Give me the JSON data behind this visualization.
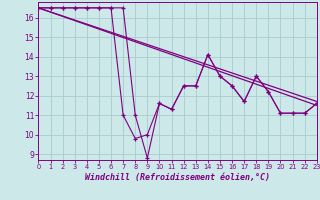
{
  "xlabel": "Windchill (Refroidissement éolien,°C)",
  "background_color": "#cce8e8",
  "line_color": "#800080",
  "grid_color": "#aacccc",
  "x_data": [
    0,
    1,
    2,
    3,
    4,
    5,
    6,
    7,
    8,
    9,
    10,
    11,
    12,
    13,
    14,
    15,
    16,
    17,
    18,
    19,
    20,
    21,
    22,
    23
  ],
  "y_line1": [
    16.5,
    16.5,
    16.5,
    16.5,
    16.5,
    16.5,
    16.5,
    16.5,
    11.0,
    8.8,
    11.6,
    11.3,
    12.5,
    12.5,
    14.1,
    13.0,
    12.5,
    11.7,
    13.0,
    12.2,
    11.1,
    11.1,
    11.1,
    11.6
  ],
  "y_line2": [
    16.5,
    16.5,
    16.5,
    16.5,
    16.5,
    16.5,
    16.5,
    11.0,
    9.8,
    10.0,
    11.6,
    11.3,
    12.5,
    12.5,
    14.1,
    13.0,
    12.5,
    11.7,
    13.0,
    12.2,
    11.1,
    11.1,
    11.1,
    11.6
  ],
  "trend1_x": [
    0,
    23
  ],
  "trend1_y": [
    16.5,
    11.5
  ],
  "trend2_x": [
    0,
    23
  ],
  "trend2_y": [
    16.5,
    11.7
  ],
  "xlim": [
    0,
    23
  ],
  "ylim": [
    8.7,
    16.8
  ],
  "yticks": [
    9,
    10,
    11,
    12,
    13,
    14,
    15,
    16
  ],
  "xticks": [
    0,
    1,
    2,
    3,
    4,
    5,
    6,
    7,
    8,
    9,
    10,
    11,
    12,
    13,
    14,
    15,
    16,
    17,
    18,
    19,
    20,
    21,
    22,
    23
  ],
  "tick_fontsize": 5.5,
  "xlabel_fontsize": 6.0
}
